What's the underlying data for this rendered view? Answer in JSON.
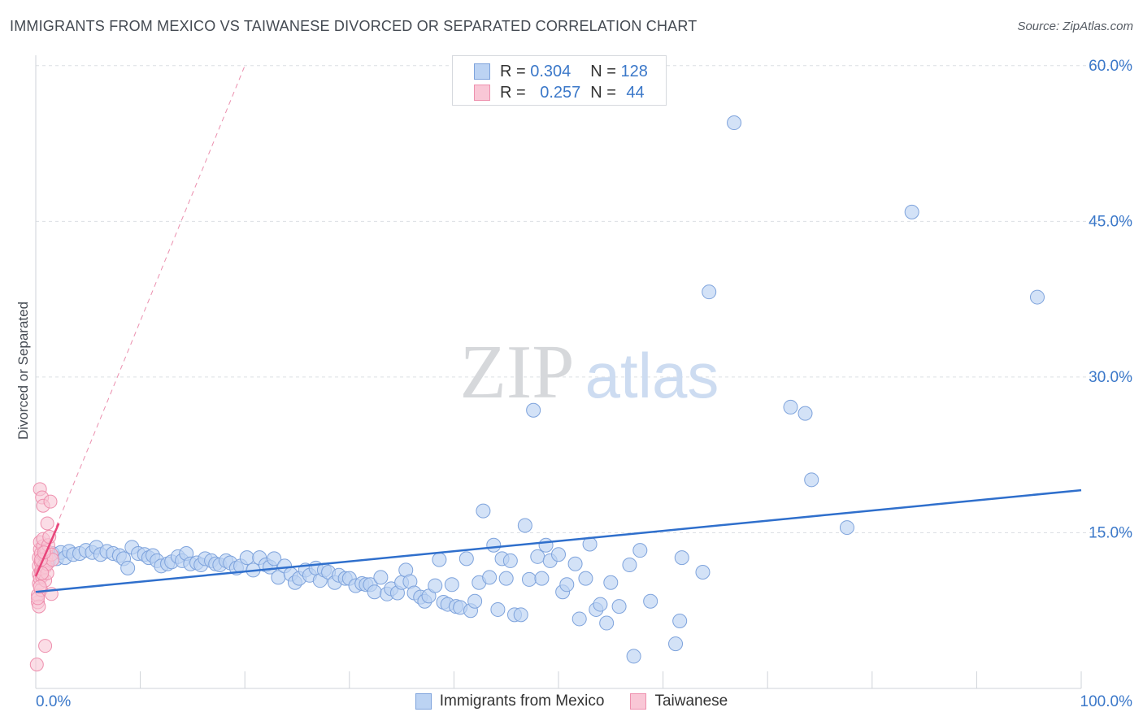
{
  "title": "IMMIGRANTS FROM MEXICO VS TAIWANESE DIVORCED OR SEPARATED CORRELATION CHART",
  "source": "Source: ZipAtlas.com",
  "watermark": {
    "zip": "ZIP",
    "atlas": "atlas"
  },
  "legend_top": [
    {
      "r_label": "R =",
      "r_value": "0.304",
      "n_label": "N =",
      "n_value": "128"
    },
    {
      "r_label": "R =",
      "r_value": "0.257",
      "n_label": "N =",
      "n_value": "44"
    }
  ],
  "colors": {
    "blue_fill": "#bcd3f3",
    "blue_stroke": "#7ea3dc",
    "blue_line": "#2f6fcc",
    "pink_fill": "#f9c7d6",
    "pink_stroke": "#ee90ae",
    "pink_line": "#e8457a",
    "tick_label": "#3b78c9",
    "grid": "#dcdfe4"
  },
  "chart_data": {
    "type": "scatter",
    "title": "IMMIGRANTS FROM MEXICO VS TAIWANESE DIVORCED OR SEPARATED CORRELATION CHART",
    "xlabel": "",
    "ylabel": "Divorced or Separated",
    "xlim": [
      0,
      100
    ],
    "ylim": [
      0,
      62
    ],
    "x_tick_labels": [
      "0.0%",
      "100.0%"
    ],
    "y_ticks": [
      15,
      30,
      45,
      60
    ],
    "y_tick_labels": [
      "15.0%",
      "30.0%",
      "45.0%",
      "60.0%"
    ],
    "grid": true,
    "legend_position": "top-center and bottom",
    "series": [
      {
        "name": "Immigrants from Mexico",
        "r": 0.304,
        "n": 128,
        "trend": {
          "x": [
            0,
            100
          ],
          "y": [
            9.3,
            19.1
          ]
        },
        "points": [
          [
            0.8,
            12.8
          ],
          [
            1.2,
            12.2
          ],
          [
            1.6,
            13.0
          ],
          [
            2.0,
            12.5
          ],
          [
            2.4,
            13.1
          ],
          [
            2.8,
            12.6
          ],
          [
            3.2,
            13.2
          ],
          [
            3.6,
            12.9
          ],
          [
            4.2,
            13.0
          ],
          [
            4.8,
            13.3
          ],
          [
            5.4,
            13.1
          ],
          [
            5.8,
            13.6
          ],
          [
            6.2,
            12.9
          ],
          [
            6.8,
            13.2
          ],
          [
            7.4,
            13.0
          ],
          [
            8.0,
            12.8
          ],
          [
            8.4,
            12.5
          ],
          [
            8.8,
            11.6
          ],
          [
            9.2,
            13.6
          ],
          [
            9.8,
            13.0
          ],
          [
            10.4,
            12.9
          ],
          [
            10.8,
            12.6
          ],
          [
            11.2,
            12.8
          ],
          [
            11.6,
            12.3
          ],
          [
            12.0,
            11.8
          ],
          [
            12.6,
            12.0
          ],
          [
            13.0,
            12.2
          ],
          [
            13.6,
            12.7
          ],
          [
            14.0,
            12.3
          ],
          [
            14.4,
            13.0
          ],
          [
            14.8,
            12.0
          ],
          [
            15.4,
            12.1
          ],
          [
            15.8,
            11.9
          ],
          [
            16.2,
            12.5
          ],
          [
            16.8,
            12.3
          ],
          [
            17.2,
            12.0
          ],
          [
            17.6,
            11.9
          ],
          [
            18.2,
            12.3
          ],
          [
            18.6,
            12.1
          ],
          [
            19.2,
            11.6
          ],
          [
            19.6,
            11.8
          ],
          [
            20.2,
            12.6
          ],
          [
            20.8,
            11.4
          ],
          [
            21.4,
            12.6
          ],
          [
            22.0,
            11.9
          ],
          [
            22.4,
            11.7
          ],
          [
            22.8,
            12.5
          ],
          [
            23.2,
            10.7
          ],
          [
            23.8,
            11.8
          ],
          [
            24.4,
            11.0
          ],
          [
            24.8,
            10.2
          ],
          [
            25.2,
            10.6
          ],
          [
            25.8,
            11.4
          ],
          [
            26.2,
            10.9
          ],
          [
            26.8,
            11.6
          ],
          [
            27.2,
            10.4
          ],
          [
            27.6,
            11.4
          ],
          [
            28.0,
            11.2
          ],
          [
            28.6,
            10.2
          ],
          [
            29.0,
            10.9
          ],
          [
            29.6,
            10.6
          ],
          [
            30.0,
            10.6
          ],
          [
            30.6,
            9.9
          ],
          [
            31.2,
            10.1
          ],
          [
            31.6,
            10.0
          ],
          [
            32.0,
            10.0
          ],
          [
            32.4,
            9.3
          ],
          [
            33.0,
            10.7
          ],
          [
            33.6,
            9.1
          ],
          [
            34.0,
            9.6
          ],
          [
            34.6,
            9.2
          ],
          [
            35.0,
            10.2
          ],
          [
            35.4,
            11.4
          ],
          [
            35.8,
            10.3
          ],
          [
            36.2,
            9.2
          ],
          [
            36.8,
            8.8
          ],
          [
            37.2,
            8.4
          ],
          [
            37.6,
            8.9
          ],
          [
            38.2,
            9.9
          ],
          [
            38.6,
            12.4
          ],
          [
            39.0,
            8.3
          ],
          [
            39.4,
            8.1
          ],
          [
            39.8,
            10.0
          ],
          [
            40.2,
            7.9
          ],
          [
            40.6,
            7.8
          ],
          [
            41.2,
            12.5
          ],
          [
            41.6,
            7.5
          ],
          [
            42.0,
            8.4
          ],
          [
            42.4,
            10.2
          ],
          [
            42.8,
            17.1
          ],
          [
            43.4,
            10.7
          ],
          [
            43.8,
            13.8
          ],
          [
            44.2,
            7.6
          ],
          [
            44.6,
            12.5
          ],
          [
            45.0,
            10.6
          ],
          [
            45.4,
            12.3
          ],
          [
            45.8,
            7.1
          ],
          [
            46.4,
            7.1
          ],
          [
            46.8,
            15.7
          ],
          [
            47.2,
            10.5
          ],
          [
            47.6,
            26.8
          ],
          [
            48.0,
            12.7
          ],
          [
            48.4,
            10.6
          ],
          [
            48.8,
            13.8
          ],
          [
            49.2,
            12.3
          ],
          [
            50.0,
            12.9
          ],
          [
            50.4,
            9.3
          ],
          [
            50.8,
            10.0
          ],
          [
            51.6,
            12.0
          ],
          [
            52.0,
            6.7
          ],
          [
            52.6,
            10.6
          ],
          [
            53.0,
            13.9
          ],
          [
            53.6,
            7.6
          ],
          [
            54.0,
            8.1
          ],
          [
            54.6,
            6.3
          ],
          [
            55.0,
            10.2
          ],
          [
            55.8,
            7.9
          ],
          [
            56.8,
            11.9
          ],
          [
            57.2,
            3.1
          ],
          [
            57.8,
            13.3
          ],
          [
            58.8,
            8.4
          ],
          [
            61.2,
            4.3
          ],
          [
            61.6,
            6.5
          ],
          [
            61.8,
            12.6
          ],
          [
            63.8,
            11.2
          ],
          [
            64.4,
            38.2
          ],
          [
            66.8,
            54.5
          ],
          [
            72.2,
            27.1
          ],
          [
            73.6,
            26.5
          ],
          [
            74.2,
            20.1
          ],
          [
            77.6,
            15.5
          ],
          [
            83.8,
            45.9
          ],
          [
            95.8,
            37.7
          ]
        ]
      },
      {
        "name": "Taiwanese",
        "r": 0.257,
        "n": 44,
        "trend": {
          "x": [
            0,
            2.2
          ],
          "y": [
            10.8,
            15.9
          ]
        },
        "trend_extended": {
          "x": [
            0,
            20
          ],
          "y": [
            10.8,
            60
          ]
        },
        "points": [
          [
            0.1,
            2.3
          ],
          [
            0.2,
            8.3
          ],
          [
            0.2,
            9.0
          ],
          [
            0.3,
            10.1
          ],
          [
            0.3,
            11.0
          ],
          [
            0.3,
            11.8
          ],
          [
            0.3,
            12.6
          ],
          [
            0.4,
            13.4
          ],
          [
            0.4,
            14.1
          ],
          [
            0.4,
            10.6
          ],
          [
            0.5,
            11.3
          ],
          [
            0.5,
            12.1
          ],
          [
            0.5,
            13.0
          ],
          [
            0.5,
            9.5
          ],
          [
            0.6,
            10.8
          ],
          [
            0.6,
            11.5
          ],
          [
            0.6,
            12.3
          ],
          [
            0.7,
            13.7
          ],
          [
            0.7,
            14.4
          ],
          [
            0.8,
            11.9
          ],
          [
            0.8,
            12.8
          ],
          [
            0.9,
            10.4
          ],
          [
            0.9,
            11.7
          ],
          [
            1.0,
            12.6
          ],
          [
            1.0,
            13.3
          ],
          [
            1.1,
            11.1
          ],
          [
            1.1,
            12.0
          ],
          [
            1.2,
            13.8
          ],
          [
            0.4,
            19.2
          ],
          [
            0.6,
            18.4
          ],
          [
            0.7,
            17.6
          ],
          [
            1.4,
            18.0
          ],
          [
            1.1,
            15.9
          ],
          [
            1.3,
            14.6
          ],
          [
            1.5,
            12.9
          ],
          [
            1.6,
            12.4
          ],
          [
            1.5,
            9.1
          ],
          [
            0.9,
            4.1
          ],
          [
            0.3,
            7.9
          ],
          [
            0.2,
            8.7
          ],
          [
            0.4,
            9.8
          ],
          [
            0.6,
            11.1
          ],
          [
            0.5,
            12.4
          ],
          [
            0.8,
            13.1
          ]
        ]
      }
    ]
  },
  "legend_bottom": [
    {
      "name": "Immigrants from Mexico",
      "label": "Immigrants from Mexico"
    },
    {
      "name": "Taiwanese",
      "label": "Taiwanese"
    }
  ]
}
